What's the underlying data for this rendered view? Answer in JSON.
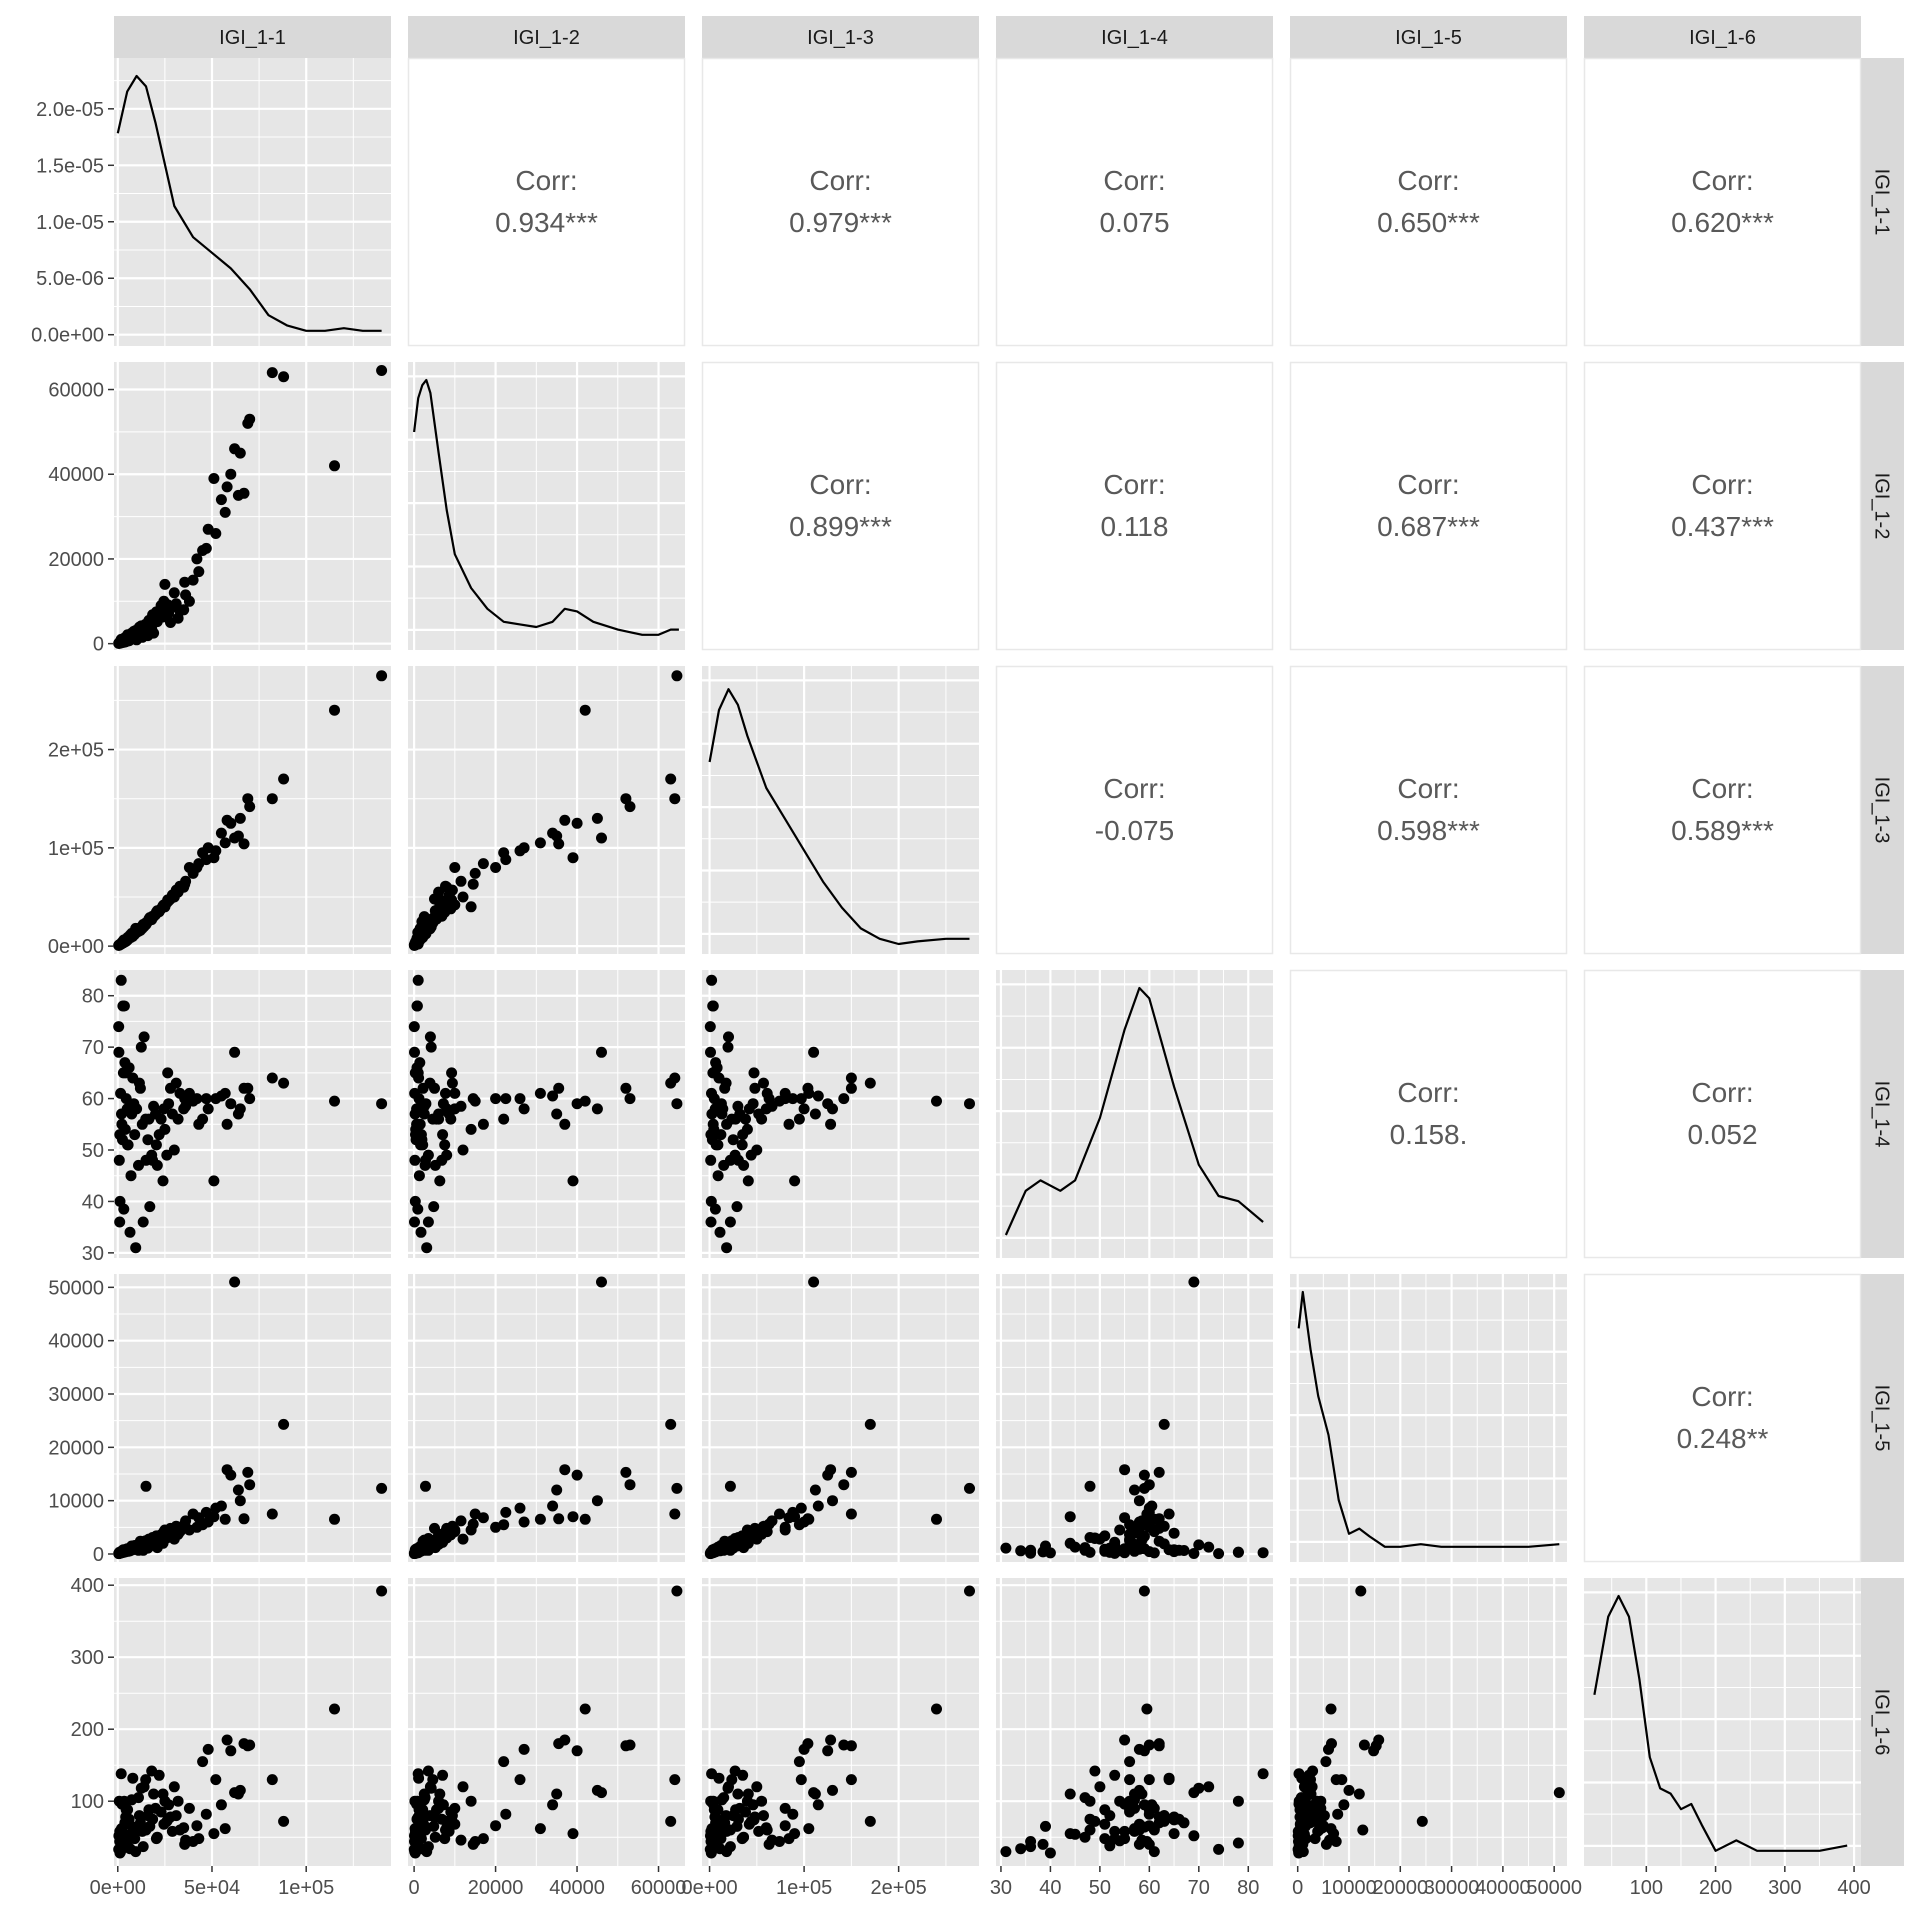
{
  "variables": [
    "IGI_1-1",
    "IGI_1-2",
    "IGI_1-3",
    "IGI_1-4",
    "IGI_1-5",
    "IGI_1-6"
  ],
  "colors": {
    "panel_bg": "#e6e6e6",
    "strip_bg": "#d9d9d9",
    "grid_major": "#ffffff",
    "points": "#000000",
    "corr_text": "#595959"
  },
  "chart_data": {
    "type": "scatter",
    "subtype": "scatterplot-matrix",
    "title": "",
    "diagonal": "density",
    "upper": "correlation",
    "lower": "scatter",
    "variables": [
      {
        "name": "IGI_1-1",
        "range": [
          -2000,
          145000
        ],
        "ticks": [
          0,
          50000,
          100000
        ],
        "tick_labels": [
          "0e+00",
          "5e+04",
          "1e+05"
        ]
      },
      {
        "name": "IGI_1-2",
        "range": [
          -1500,
          66500
        ],
        "ticks": [
          0,
          20000,
          40000,
          60000
        ],
        "tick_labels": [
          "0",
          "20000",
          "40000",
          "60000"
        ]
      },
      {
        "name": "IGI_1-3",
        "range": [
          -8000,
          285000
        ],
        "ticks": [
          0,
          100000,
          200000
        ],
        "tick_labels": [
          "0e+00",
          "1e+05",
          "2e+05"
        ]
      },
      {
        "name": "IGI_1-4",
        "range": [
          29,
          85
        ],
        "ticks": [
          30,
          40,
          50,
          60,
          70,
          80
        ],
        "tick_labels": [
          "30",
          "40",
          "50",
          "60",
          "70",
          "80"
        ]
      },
      {
        "name": "IGI_1-5",
        "range": [
          -1500,
          52500
        ],
        "ticks": [
          0,
          10000,
          20000,
          30000,
          40000,
          50000
        ],
        "tick_labels": [
          "0",
          "10000",
          "20000",
          "30000",
          "40000",
          "50000"
        ]
      },
      {
        "name": "IGI_1-6",
        "range": [
          10,
          410
        ],
        "ticks": [
          100,
          200,
          300,
          400
        ],
        "tick_labels": [
          "100",
          "200",
          "300",
          "400"
        ]
      }
    ],
    "density_axis": {
      "range": [
        -1e-06,
        2.45e-05
      ],
      "ticks": [
        0,
        5e-06,
        1e-05,
        1.5e-05,
        2e-05
      ],
      "tick_labels": [
        "0.0e+00",
        "5.0e-06",
        "1.0e-05",
        "1.5e-05",
        "2.0e-05"
      ]
    },
    "left_axis_ticks": [
      {
        "row": 1,
        "values": [
          0,
          20000,
          40000,
          60000
        ],
        "labels": [
          "0",
          "20000",
          "40000",
          "60000"
        ]
      },
      {
        "row": 2,
        "values": [
          0,
          100000,
          200000
        ],
        "labels": [
          "0e+00",
          "1e+05",
          "2e+05"
        ]
      },
      {
        "row": 3,
        "values": [
          30,
          40,
          50,
          60,
          70,
          80
        ],
        "labels": [
          "30",
          "40",
          "50",
          "60",
          "70",
          "80"
        ]
      },
      {
        "row": 4,
        "values": [
          0,
          10000,
          20000,
          30000,
          40000,
          50000
        ],
        "labels": [
          "0",
          "10000",
          "20000",
          "30000",
          "40000",
          "50000"
        ]
      },
      {
        "row": 5,
        "values": [
          100,
          200,
          300,
          400
        ],
        "labels": [
          "100",
          "200",
          "300",
          "400"
        ]
      }
    ],
    "correlations": [
      {
        "row": 0,
        "col": 1,
        "label": "Corr:",
        "value": "0.934***"
      },
      {
        "row": 0,
        "col": 2,
        "label": "Corr:",
        "value": "0.979***"
      },
      {
        "row": 0,
        "col": 3,
        "label": "Corr:",
        "value": "0.075"
      },
      {
        "row": 0,
        "col": 4,
        "label": "Corr:",
        "value": "0.650***"
      },
      {
        "row": 0,
        "col": 5,
        "label": "Corr:",
        "value": "0.620***"
      },
      {
        "row": 1,
        "col": 2,
        "label": "Corr:",
        "value": "0.899***"
      },
      {
        "row": 1,
        "col": 3,
        "label": "Corr:",
        "value": "0.118"
      },
      {
        "row": 1,
        "col": 4,
        "label": "Corr:",
        "value": "0.687***"
      },
      {
        "row": 1,
        "col": 5,
        "label": "Corr:",
        "value": "0.437***"
      },
      {
        "row": 2,
        "col": 3,
        "label": "Corr:",
        "value": "-0.075"
      },
      {
        "row": 2,
        "col": 4,
        "label": "Corr:",
        "value": "0.598***"
      },
      {
        "row": 2,
        "col": 5,
        "label": "Corr:",
        "value": "0.589***"
      },
      {
        "row": 3,
        "col": 4,
        "label": "Corr:",
        "value": "0.158."
      },
      {
        "row": 3,
        "col": 5,
        "label": "Corr:",
        "value": "0.052"
      },
      {
        "row": 4,
        "col": 5,
        "label": "Corr:",
        "value": "0.248**"
      }
    ],
    "density_curves": [
      [
        [
          0,
          0.78
        ],
        [
          5000,
          0.94
        ],
        [
          10000,
          1.0
        ],
        [
          15000,
          0.96
        ],
        [
          20000,
          0.82
        ],
        [
          25000,
          0.66
        ],
        [
          30000,
          0.5
        ],
        [
          40000,
          0.38
        ],
        [
          50000,
          0.32
        ],
        [
          60000,
          0.26
        ],
        [
          70000,
          0.18
        ],
        [
          80000,
          0.08
        ],
        [
          90000,
          0.04
        ],
        [
          100000,
          0.02
        ],
        [
          110000,
          0.02
        ],
        [
          120000,
          0.03
        ],
        [
          130000,
          0.02
        ],
        [
          140000,
          0.02
        ]
      ],
      [
        [
          0,
          0.8
        ],
        [
          1000,
          0.93
        ],
        [
          2000,
          0.98
        ],
        [
          3000,
          1.0
        ],
        [
          4000,
          0.95
        ],
        [
          6000,
          0.72
        ],
        [
          8000,
          0.5
        ],
        [
          10000,
          0.33
        ],
        [
          14000,
          0.2
        ],
        [
          18000,
          0.12
        ],
        [
          22000,
          0.07
        ],
        [
          26000,
          0.06
        ],
        [
          30000,
          0.05
        ],
        [
          34000,
          0.07
        ],
        [
          37000,
          0.12
        ],
        [
          40000,
          0.11
        ],
        [
          44000,
          0.07
        ],
        [
          50000,
          0.04
        ],
        [
          56000,
          0.02
        ],
        [
          60000,
          0.02
        ],
        [
          63000,
          0.04
        ],
        [
          65000,
          0.04
        ]
      ],
      [
        [
          0,
          0.7
        ],
        [
          10000,
          0.9
        ],
        [
          20000,
          0.98
        ],
        [
          30000,
          0.92
        ],
        [
          40000,
          0.8
        ],
        [
          60000,
          0.6
        ],
        [
          80000,
          0.48
        ],
        [
          100000,
          0.36
        ],
        [
          120000,
          0.24
        ],
        [
          140000,
          0.14
        ],
        [
          160000,
          0.06
        ],
        [
          180000,
          0.02
        ],
        [
          200000,
          0.0
        ],
        [
          220000,
          0.01
        ],
        [
          250000,
          0.02
        ],
        [
          275000,
          0.02
        ]
      ],
      [
        [
          31,
          0.05
        ],
        [
          35,
          0.22
        ],
        [
          38,
          0.26
        ],
        [
          42,
          0.22
        ],
        [
          45,
          0.26
        ],
        [
          50,
          0.5
        ],
        [
          55,
          0.84
        ],
        [
          58,
          1.0
        ],
        [
          60,
          0.96
        ],
        [
          65,
          0.62
        ],
        [
          70,
          0.32
        ],
        [
          74,
          0.2
        ],
        [
          78,
          0.18
        ],
        [
          83,
          0.1
        ]
      ],
      [
        [
          200,
          0.86
        ],
        [
          1000,
          1.0
        ],
        [
          2500,
          0.78
        ],
        [
          4000,
          0.6
        ],
        [
          6000,
          0.45
        ],
        [
          8000,
          0.2
        ],
        [
          10000,
          0.07
        ],
        [
          12000,
          0.09
        ],
        [
          14000,
          0.06
        ],
        [
          17000,
          0.02
        ],
        [
          20000,
          0.02
        ],
        [
          24000,
          0.03
        ],
        [
          28000,
          0.02
        ],
        [
          35000,
          0.02
        ],
        [
          45000,
          0.02
        ],
        [
          51000,
          0.03
        ]
      ],
      [
        [
          25,
          0.62
        ],
        [
          45,
          0.92
        ],
        [
          60,
          1.0
        ],
        [
          75,
          0.92
        ],
        [
          90,
          0.68
        ],
        [
          105,
          0.38
        ],
        [
          120,
          0.26
        ],
        [
          135,
          0.24
        ],
        [
          150,
          0.18
        ],
        [
          165,
          0.2
        ],
        [
          180,
          0.12
        ],
        [
          200,
          0.02
        ],
        [
          230,
          0.06
        ],
        [
          260,
          0.02
        ],
        [
          300,
          0.02
        ],
        [
          350,
          0.02
        ],
        [
          390,
          0.04
        ]
      ]
    ],
    "observations": [
      [
        140000,
        64500,
        275000,
        59,
        12300,
        392
      ],
      [
        115000,
        42000,
        240000,
        59.5,
        6500,
        228
      ],
      [
        88000,
        63000,
        170000,
        63,
        24300,
        72
      ],
      [
        82000,
        64000,
        150000,
        64,
        7500,
        130
      ],
      [
        69000,
        52000,
        150000,
        62,
        15300,
        177
      ],
      [
        70000,
        53000,
        142000,
        60,
        13000,
        178
      ],
      [
        65000,
        45000,
        130000,
        58,
        10000,
        115
      ],
      [
        60000,
        40000,
        125000,
        59,
        14800,
        170
      ],
      [
        62000,
        46000,
        110000,
        69,
        51000,
        112
      ],
      [
        58000,
        37000,
        128000,
        55,
        15800,
        185
      ],
      [
        55000,
        34000,
        115000,
        60.5,
        9000,
        95
      ],
      [
        51000,
        39000,
        90000,
        44,
        7000,
        55
      ],
      [
        48000,
        27000,
        100000,
        58,
        6000,
        172
      ],
      [
        45000,
        22000,
        95000,
        56,
        5500,
        155
      ],
      [
        42000,
        20000,
        80000,
        60,
        5000,
        66
      ],
      [
        40000,
        15000,
        74000,
        59.5,
        7500,
        44
      ],
      [
        38000,
        10000,
        80000,
        61,
        4500,
        90
      ],
      [
        35000,
        8000,
        60000,
        58,
        4800,
        63
      ],
      [
        32000,
        6000,
        55000,
        56,
        3700,
        100
      ],
      [
        30000,
        12000,
        50000,
        50,
        2800,
        120
      ],
      [
        28000,
        5000,
        48000,
        62,
        4800,
        78
      ],
      [
        26000,
        8000,
        44000,
        49,
        3000,
        72
      ],
      [
        25000,
        14000,
        40000,
        54,
        4500,
        100
      ],
      [
        23000,
        9000,
        38000,
        56,
        3600,
        85
      ],
      [
        22000,
        7000,
        35000,
        53,
        2200,
        136
      ],
      [
        20000,
        6000,
        32000,
        57,
        1800,
        90
      ],
      [
        19000,
        2500,
        30000,
        58.5,
        2600,
        110
      ],
      [
        18000,
        3500,
        27000,
        49,
        2900,
        142
      ],
      [
        16000,
        1900,
        25000,
        52,
        1100,
        80
      ],
      [
        15000,
        2800,
        22000,
        48,
        12700,
        60
      ],
      [
        14000,
        4000,
        20000,
        72,
        1300,
        120
      ],
      [
        13000,
        1500,
        18000,
        55,
        1000,
        58
      ],
      [
        12000,
        2200,
        16000,
        62,
        2400,
        70
      ],
      [
        11000,
        2700,
        15000,
        47,
        700,
        105
      ],
      [
        10000,
        900,
        14000,
        58,
        900,
        60
      ],
      [
        9000,
        1800,
        12000,
        53,
        1600,
        48
      ],
      [
        8000,
        1100,
        10000,
        64,
        800,
        132
      ],
      [
        7000,
        1300,
        9000,
        45,
        1300,
        54
      ],
      [
        6000,
        700,
        8000,
        66,
        700,
        75
      ],
      [
        5500,
        1600,
        7000,
        51,
        500,
        68
      ],
      [
        5000,
        600,
        6000,
        58,
        1000,
        40
      ],
      [
        4500,
        1200,
        5000,
        60,
        450,
        88
      ],
      [
        4000,
        400,
        4500,
        54,
        600,
        45
      ],
      [
        3500,
        800,
        4000,
        78,
        350,
        100
      ],
      [
        3000,
        300,
        3500,
        65,
        800,
        55
      ],
      [
        2500,
        500,
        3000,
        52,
        300,
        38
      ],
      [
        2000,
        250,
        2500,
        57,
        500,
        62
      ],
      [
        1800,
        1000,
        2200,
        83,
        250,
        138
      ],
      [
        1500,
        150,
        2000,
        61,
        200,
        30
      ],
      [
        1200,
        300,
        1800,
        40,
        200,
        28
      ],
      [
        1000,
        100,
        1500,
        36,
        150,
        44
      ],
      [
        800,
        200,
        1200,
        48,
        300,
        100
      ],
      [
        600,
        100,
        1000,
        69,
        100,
        52
      ],
      [
        500,
        50,
        800,
        74,
        80,
        33
      ],
      [
        3200,
        900,
        6200,
        38.5,
        400,
        40
      ],
      [
        6500,
        1700,
        11000,
        34,
        600,
        34
      ],
      [
        9500,
        3100,
        18000,
        31,
        1100,
        30
      ],
      [
        13500,
        3500,
        22000,
        36,
        700,
        37
      ],
      [
        17000,
        4800,
        29000,
        39,
        1500,
        65
      ],
      [
        21000,
        5200,
        36000,
        47,
        1200,
        50
      ],
      [
        24000,
        6300,
        41000,
        44,
        2000,
        110
      ],
      [
        27000,
        7200,
        46000,
        59,
        3300,
        95
      ],
      [
        29000,
        8600,
        52000,
        57,
        3900,
        58
      ],
      [
        31000,
        9400,
        57000,
        63,
        5200,
        80
      ],
      [
        33000,
        7700,
        61000,
        61,
        4200,
        60
      ],
      [
        36000,
        11500,
        66000,
        58.5,
        6200,
        46
      ],
      [
        43000,
        17000,
        84000,
        55,
        6800,
        48
      ],
      [
        47000,
        22500,
        88000,
        60,
        7800,
        82
      ],
      [
        52000,
        26000,
        97000,
        60,
        8600,
        130
      ],
      [
        57000,
        31000,
        105000,
        61,
        6500,
        62
      ],
      [
        64000,
        35000,
        112000,
        57,
        12000,
        110
      ],
      [
        67000,
        35500,
        104000,
        62,
        6600,
        180
      ],
      [
        2200,
        600,
        3800,
        55,
        250,
        96
      ],
      [
        3800,
        1400,
        6400,
        67,
        650,
        70
      ],
      [
        5200,
        2100,
        8800,
        51,
        900,
        88
      ],
      [
        7400,
        2500,
        13000,
        57,
        1500,
        102
      ],
      [
        11500,
        3900,
        17500,
        63,
        1900,
        80
      ],
      [
        14800,
        4600,
        23500,
        56,
        2500,
        130
      ],
      [
        18500,
        6800,
        30500,
        48,
        3100,
        75
      ],
      [
        24500,
        10000,
        42000,
        58,
        4200,
        68
      ],
      [
        35500,
        14500,
        63000,
        60,
        5600,
        40
      ],
      [
        1100,
        350,
        1400,
        53,
        120,
        58
      ],
      [
        2700,
        700,
        3300,
        78,
        300,
        42
      ],
      [
        4200,
        1000,
        5600,
        65,
        450,
        78
      ],
      [
        8500,
        2900,
        12500,
        59,
        1000,
        64
      ],
      [
        12500,
        4200,
        19500,
        70,
        1700,
        118
      ],
      [
        16500,
        5500,
        27500,
        56,
        2800,
        88
      ],
      [
        20500,
        7500,
        34500,
        51,
        3400,
        48
      ],
      [
        26500,
        9200,
        47000,
        65,
        3900,
        74
      ]
    ]
  }
}
